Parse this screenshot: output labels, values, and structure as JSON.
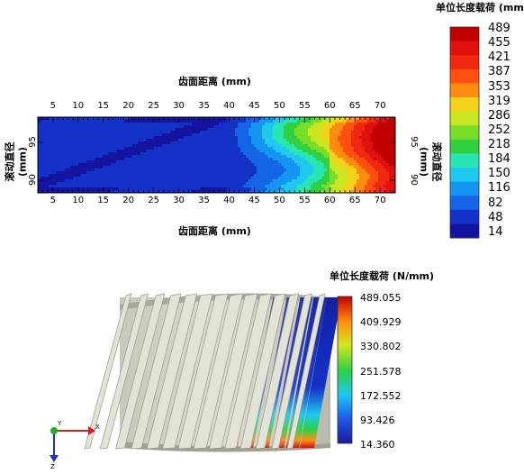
{
  "chart_data": [
    {
      "type": "heatmap",
      "title": "齿面距离 (mm)",
      "xlabel": "齿面距离 (mm)",
      "ylabel": "滚动直径 (mm)",
      "ylabel_right": "滚动直径 (mm)",
      "x_ticks": [
        "5",
        "10",
        "15",
        "20",
        "25",
        "30",
        "35",
        "40",
        "45",
        "50",
        "55",
        "60",
        "65",
        "70"
      ],
      "y_ticks": [
        "95",
        "90"
      ],
      "x_range": [
        2,
        73
      ],
      "legend_title": "单位长度载荷 (mm)",
      "legend_levels": [
        "489",
        "455",
        "421",
        "387",
        "353",
        "319",
        "286",
        "252",
        "218",
        "184",
        "150",
        "116",
        "82",
        "48",
        "14"
      ],
      "legend_colors": [
        "#c00000",
        "#e01010",
        "#f02810",
        "#ff5010",
        "#ff8c10",
        "#f2d21a",
        "#c8e622",
        "#78dc28",
        "#30d040",
        "#28e6b4",
        "#20c8f0",
        "#1496f0",
        "#1464e6",
        "#1432c8",
        "#1414a0"
      ],
      "value_range": [
        14,
        489
      ]
    },
    {
      "type": "heatmap",
      "title": "单位长度载荷 (N/mm)",
      "legend_title": "单位长度载荷 (N/mm)",
      "legend_levels": [
        "489.055",
        "409.929",
        "330.802",
        "251.578",
        "172.552",
        "93.426",
        "14.360"
      ],
      "value_range": [
        14.36,
        489.055
      ]
    }
  ],
  "axis_triad": {
    "x_label": "X",
    "y_label": "Y",
    "z_label": "Z"
  }
}
